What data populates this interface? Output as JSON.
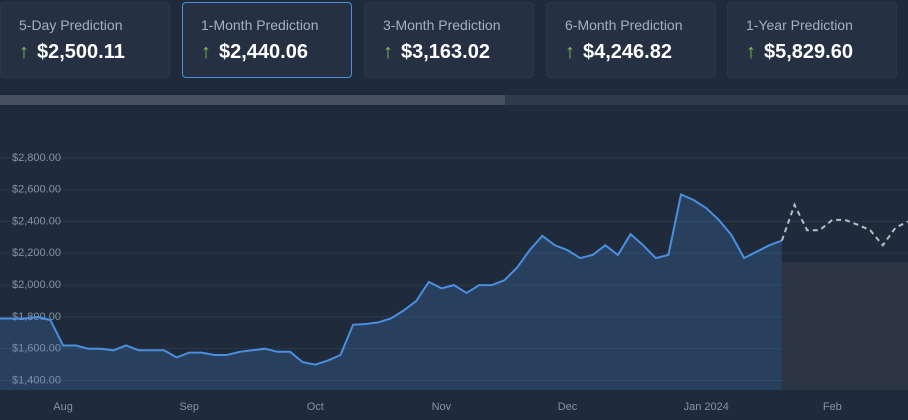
{
  "cards": [
    {
      "label": "5-Day Prediction",
      "value": "$2,500.11"
    },
    {
      "label": "1-Month Prediction",
      "value": "$2,440.06"
    },
    {
      "label": "3-Month Prediction",
      "value": "$3,163.02"
    },
    {
      "label": "6-Month Prediction",
      "value": "$4,246.82"
    },
    {
      "label": "1-Year Prediction",
      "value": "$5,829.60"
    }
  ],
  "chart_data": {
    "type": "line",
    "categories": [
      null,
      null,
      null,
      null,
      null,
      "Aug",
      null,
      null,
      null,
      null,
      null,
      null,
      null,
      null,
      null,
      "Sep",
      null,
      null,
      null,
      null,
      null,
      null,
      null,
      null,
      null,
      "Oct",
      null,
      null,
      null,
      null,
      null,
      null,
      null,
      null,
      null,
      "Nov",
      null,
      null,
      null,
      null,
      null,
      null,
      null,
      null,
      null,
      "Dec",
      null,
      null,
      null,
      null,
      null,
      null,
      null,
      null,
      null,
      null,
      "Jan 2024",
      null,
      null,
      null,
      null,
      null,
      null,
      null,
      null,
      null,
      "Feb",
      null,
      null,
      null,
      null,
      null,
      null
    ],
    "series": [
      {
        "color": "#4a8fe0",
        "style": "solid",
        "area": true,
        "values": [
          1790,
          1790,
          1790,
          1800,
          1780,
          1620,
          1620,
          1600,
          1600,
          1590,
          1620,
          1590,
          1590,
          1590,
          1545,
          1575,
          1575,
          1560,
          1560,
          1580,
          1590,
          1600,
          1580,
          1580,
          1515,
          1500,
          1525,
          1560,
          1750,
          1755,
          1765,
          1790,
          1840,
          1900,
          2020,
          1980,
          2000,
          1950,
          2000,
          2000,
          2030,
          2110,
          2220,
          2310,
          2250,
          2220,
          2170,
          2190,
          2250,
          2190,
          2320,
          2250,
          2170,
          2190,
          2570,
          2535,
          2485,
          2410,
          2315,
          2170,
          2210,
          2250,
          2280,
          null,
          null,
          null,
          null,
          null,
          null,
          null,
          null,
          null,
          null
        ]
      },
      {
        "color": "#b8bec6",
        "style": "dashed",
        "area": false,
        "values": [
          null,
          null,
          null,
          null,
          null,
          null,
          null,
          null,
          null,
          null,
          null,
          null,
          null,
          null,
          null,
          null,
          null,
          null,
          null,
          null,
          null,
          null,
          null,
          null,
          null,
          null,
          null,
          null,
          null,
          null,
          null,
          null,
          null,
          null,
          null,
          null,
          null,
          null,
          null,
          null,
          null,
          null,
          null,
          null,
          null,
          null,
          null,
          null,
          null,
          null,
          null,
          null,
          null,
          null,
          null,
          null,
          null,
          null,
          null,
          null,
          null,
          null,
          2280,
          2505,
          2345,
          2345,
          2410,
          2410,
          2380,
          2345,
          2250,
          2360,
          2400
        ]
      }
    ],
    "ylim": [
      1340,
      2900
    ],
    "yticks": [
      {
        "value": 1400,
        "label": "$1,400.00"
      },
      {
        "value": 1600,
        "label": "$1,600.00"
      },
      {
        "value": 1800,
        "label": "$1,800.00"
      },
      {
        "value": 2000,
        "label": "$2,000.00"
      },
      {
        "value": 2200,
        "label": "$2,200.00"
      },
      {
        "value": 2400,
        "label": "$2,400.00"
      },
      {
        "value": 2600,
        "label": "$2,600.00"
      },
      {
        "value": 2800,
        "label": "$2,800.00"
      }
    ],
    "grid": true
  }
}
